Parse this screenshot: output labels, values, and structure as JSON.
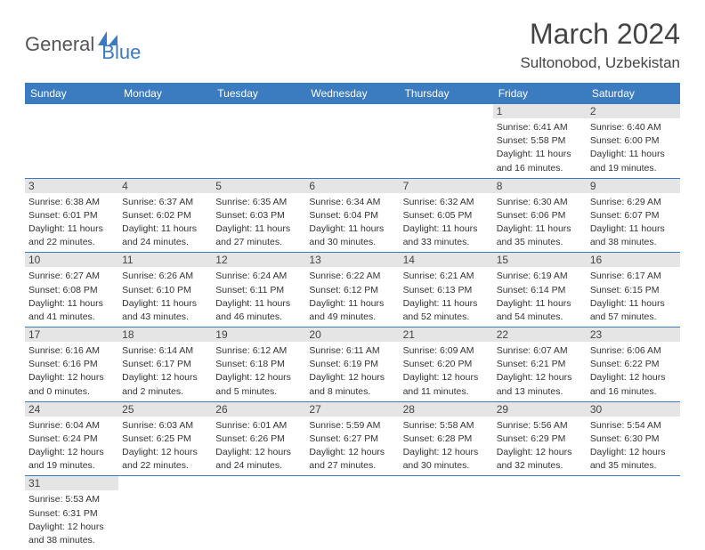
{
  "logo": {
    "part1": "General",
    "part2": "Blue"
  },
  "title": "March 2024",
  "location": "Sultonobod, Uzbekistan",
  "colors": {
    "header_bg": "#3b7bbf",
    "header_fg": "#ffffff",
    "daynum_bg": "#e5e5e5",
    "text": "#333333",
    "border": "#3b7bbf"
  },
  "weekdays": [
    "Sunday",
    "Monday",
    "Tuesday",
    "Wednesday",
    "Thursday",
    "Friday",
    "Saturday"
  ],
  "days": {
    "1": {
      "sr": "Sunrise: 6:41 AM",
      "ss": "Sunset: 5:58 PM",
      "dl1": "Daylight: 11 hours",
      "dl2": "and 16 minutes."
    },
    "2": {
      "sr": "Sunrise: 6:40 AM",
      "ss": "Sunset: 6:00 PM",
      "dl1": "Daylight: 11 hours",
      "dl2": "and 19 minutes."
    },
    "3": {
      "sr": "Sunrise: 6:38 AM",
      "ss": "Sunset: 6:01 PM",
      "dl1": "Daylight: 11 hours",
      "dl2": "and 22 minutes."
    },
    "4": {
      "sr": "Sunrise: 6:37 AM",
      "ss": "Sunset: 6:02 PM",
      "dl1": "Daylight: 11 hours",
      "dl2": "and 24 minutes."
    },
    "5": {
      "sr": "Sunrise: 6:35 AM",
      "ss": "Sunset: 6:03 PM",
      "dl1": "Daylight: 11 hours",
      "dl2": "and 27 minutes."
    },
    "6": {
      "sr": "Sunrise: 6:34 AM",
      "ss": "Sunset: 6:04 PM",
      "dl1": "Daylight: 11 hours",
      "dl2": "and 30 minutes."
    },
    "7": {
      "sr": "Sunrise: 6:32 AM",
      "ss": "Sunset: 6:05 PM",
      "dl1": "Daylight: 11 hours",
      "dl2": "and 33 minutes."
    },
    "8": {
      "sr": "Sunrise: 6:30 AM",
      "ss": "Sunset: 6:06 PM",
      "dl1": "Daylight: 11 hours",
      "dl2": "and 35 minutes."
    },
    "9": {
      "sr": "Sunrise: 6:29 AM",
      "ss": "Sunset: 6:07 PM",
      "dl1": "Daylight: 11 hours",
      "dl2": "and 38 minutes."
    },
    "10": {
      "sr": "Sunrise: 6:27 AM",
      "ss": "Sunset: 6:08 PM",
      "dl1": "Daylight: 11 hours",
      "dl2": "and 41 minutes."
    },
    "11": {
      "sr": "Sunrise: 6:26 AM",
      "ss": "Sunset: 6:10 PM",
      "dl1": "Daylight: 11 hours",
      "dl2": "and 43 minutes."
    },
    "12": {
      "sr": "Sunrise: 6:24 AM",
      "ss": "Sunset: 6:11 PM",
      "dl1": "Daylight: 11 hours",
      "dl2": "and 46 minutes."
    },
    "13": {
      "sr": "Sunrise: 6:22 AM",
      "ss": "Sunset: 6:12 PM",
      "dl1": "Daylight: 11 hours",
      "dl2": "and 49 minutes."
    },
    "14": {
      "sr": "Sunrise: 6:21 AM",
      "ss": "Sunset: 6:13 PM",
      "dl1": "Daylight: 11 hours",
      "dl2": "and 52 minutes."
    },
    "15": {
      "sr": "Sunrise: 6:19 AM",
      "ss": "Sunset: 6:14 PM",
      "dl1": "Daylight: 11 hours",
      "dl2": "and 54 minutes."
    },
    "16": {
      "sr": "Sunrise: 6:17 AM",
      "ss": "Sunset: 6:15 PM",
      "dl1": "Daylight: 11 hours",
      "dl2": "and 57 minutes."
    },
    "17": {
      "sr": "Sunrise: 6:16 AM",
      "ss": "Sunset: 6:16 PM",
      "dl1": "Daylight: 12 hours",
      "dl2": "and 0 minutes."
    },
    "18": {
      "sr": "Sunrise: 6:14 AM",
      "ss": "Sunset: 6:17 PM",
      "dl1": "Daylight: 12 hours",
      "dl2": "and 2 minutes."
    },
    "19": {
      "sr": "Sunrise: 6:12 AM",
      "ss": "Sunset: 6:18 PM",
      "dl1": "Daylight: 12 hours",
      "dl2": "and 5 minutes."
    },
    "20": {
      "sr": "Sunrise: 6:11 AM",
      "ss": "Sunset: 6:19 PM",
      "dl1": "Daylight: 12 hours",
      "dl2": "and 8 minutes."
    },
    "21": {
      "sr": "Sunrise: 6:09 AM",
      "ss": "Sunset: 6:20 PM",
      "dl1": "Daylight: 12 hours",
      "dl2": "and 11 minutes."
    },
    "22": {
      "sr": "Sunrise: 6:07 AM",
      "ss": "Sunset: 6:21 PM",
      "dl1": "Daylight: 12 hours",
      "dl2": "and 13 minutes."
    },
    "23": {
      "sr": "Sunrise: 6:06 AM",
      "ss": "Sunset: 6:22 PM",
      "dl1": "Daylight: 12 hours",
      "dl2": "and 16 minutes."
    },
    "24": {
      "sr": "Sunrise: 6:04 AM",
      "ss": "Sunset: 6:24 PM",
      "dl1": "Daylight: 12 hours",
      "dl2": "and 19 minutes."
    },
    "25": {
      "sr": "Sunrise: 6:03 AM",
      "ss": "Sunset: 6:25 PM",
      "dl1": "Daylight: 12 hours",
      "dl2": "and 22 minutes."
    },
    "26": {
      "sr": "Sunrise: 6:01 AM",
      "ss": "Sunset: 6:26 PM",
      "dl1": "Daylight: 12 hours",
      "dl2": "and 24 minutes."
    },
    "27": {
      "sr": "Sunrise: 5:59 AM",
      "ss": "Sunset: 6:27 PM",
      "dl1": "Daylight: 12 hours",
      "dl2": "and 27 minutes."
    },
    "28": {
      "sr": "Sunrise: 5:58 AM",
      "ss": "Sunset: 6:28 PM",
      "dl1": "Daylight: 12 hours",
      "dl2": "and 30 minutes."
    },
    "29": {
      "sr": "Sunrise: 5:56 AM",
      "ss": "Sunset: 6:29 PM",
      "dl1": "Daylight: 12 hours",
      "dl2": "and 32 minutes."
    },
    "30": {
      "sr": "Sunrise: 5:54 AM",
      "ss": "Sunset: 6:30 PM",
      "dl1": "Daylight: 12 hours",
      "dl2": "and 35 minutes."
    },
    "31": {
      "sr": "Sunrise: 5:53 AM",
      "ss": "Sunset: 6:31 PM",
      "dl1": "Daylight: 12 hours",
      "dl2": "and 38 minutes."
    }
  },
  "grid": [
    [
      null,
      null,
      null,
      null,
      null,
      "1",
      "2"
    ],
    [
      "3",
      "4",
      "5",
      "6",
      "7",
      "8",
      "9"
    ],
    [
      "10",
      "11",
      "12",
      "13",
      "14",
      "15",
      "16"
    ],
    [
      "17",
      "18",
      "19",
      "20",
      "21",
      "22",
      "23"
    ],
    [
      "24",
      "25",
      "26",
      "27",
      "28",
      "29",
      "30"
    ],
    [
      "31",
      null,
      null,
      null,
      null,
      null,
      null
    ]
  ]
}
